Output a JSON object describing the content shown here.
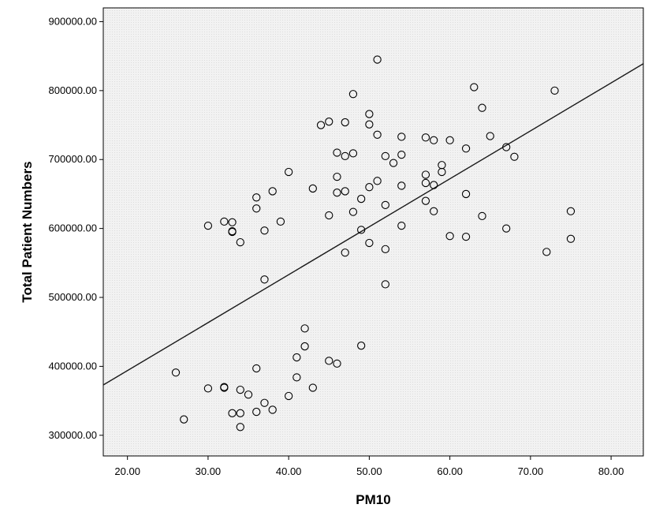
{
  "chart_data": {
    "type": "scatter",
    "xlabel": "PM10",
    "ylabel": "Total Patient Numbers",
    "xlim": [
      17,
      84
    ],
    "ylim": [
      270000,
      920000
    ],
    "x_ticks": [
      "20.00",
      "30.00",
      "40.00",
      "50.00",
      "60.00",
      "70.00",
      "80.00"
    ],
    "x_tick_values": [
      20,
      30,
      40,
      50,
      60,
      70,
      80
    ],
    "y_ticks": [
      "300000.00",
      "400000.00",
      "500000.00",
      "600000.00",
      "700000.00",
      "800000.00",
      "900000.00"
    ],
    "y_tick_values": [
      300000,
      400000,
      500000,
      600000,
      700000,
      800000,
      900000
    ],
    "grid": false,
    "legend": "none",
    "fit_line": {
      "x": [
        17,
        84
      ],
      "y": [
        373000,
        839000
      ]
    },
    "points": [
      {
        "x": 26,
        "y": 391000
      },
      {
        "x": 27,
        "y": 323000
      },
      {
        "x": 30,
        "y": 368000
      },
      {
        "x": 30,
        "y": 604000
      },
      {
        "x": 32,
        "y": 370000
      },
      {
        "x": 32,
        "y": 369000
      },
      {
        "x": 32,
        "y": 610000
      },
      {
        "x": 33,
        "y": 609000
      },
      {
        "x": 33,
        "y": 596000
      },
      {
        "x": 33,
        "y": 595000
      },
      {
        "x": 33,
        "y": 332000
      },
      {
        "x": 34,
        "y": 580000
      },
      {
        "x": 34,
        "y": 366000
      },
      {
        "x": 34,
        "y": 332000
      },
      {
        "x": 34,
        "y": 312000
      },
      {
        "x": 35,
        "y": 359000
      },
      {
        "x": 36,
        "y": 397000
      },
      {
        "x": 36,
        "y": 334000
      },
      {
        "x": 36,
        "y": 645000
      },
      {
        "x": 36,
        "y": 629000
      },
      {
        "x": 37,
        "y": 597000
      },
      {
        "x": 37,
        "y": 526000
      },
      {
        "x": 37,
        "y": 347000
      },
      {
        "x": 38,
        "y": 654000
      },
      {
        "x": 38,
        "y": 337000
      },
      {
        "x": 39,
        "y": 610000
      },
      {
        "x": 40,
        "y": 682000
      },
      {
        "x": 40,
        "y": 357000
      },
      {
        "x": 41,
        "y": 413000
      },
      {
        "x": 41,
        "y": 384000
      },
      {
        "x": 42,
        "y": 455000
      },
      {
        "x": 42,
        "y": 429000
      },
      {
        "x": 43,
        "y": 369000
      },
      {
        "x": 43,
        "y": 658000
      },
      {
        "x": 44,
        "y": 750000
      },
      {
        "x": 45,
        "y": 755000
      },
      {
        "x": 45,
        "y": 619000
      },
      {
        "x": 45,
        "y": 408000
      },
      {
        "x": 46,
        "y": 404000
      },
      {
        "x": 46,
        "y": 710000
      },
      {
        "x": 46,
        "y": 675000
      },
      {
        "x": 46,
        "y": 652000
      },
      {
        "x": 47,
        "y": 754000
      },
      {
        "x": 47,
        "y": 705000
      },
      {
        "x": 47,
        "y": 654000
      },
      {
        "x": 47,
        "y": 565000
      },
      {
        "x": 48,
        "y": 795000
      },
      {
        "x": 48,
        "y": 709000
      },
      {
        "x": 48,
        "y": 624000
      },
      {
        "x": 49,
        "y": 643000
      },
      {
        "x": 49,
        "y": 598000
      },
      {
        "x": 49,
        "y": 430000
      },
      {
        "x": 50,
        "y": 766000
      },
      {
        "x": 50,
        "y": 751000
      },
      {
        "x": 50,
        "y": 660000
      },
      {
        "x": 50,
        "y": 579000
      },
      {
        "x": 51,
        "y": 845000
      },
      {
        "x": 51,
        "y": 736000
      },
      {
        "x": 51,
        "y": 669000
      },
      {
        "x": 52,
        "y": 705000
      },
      {
        "x": 52,
        "y": 634000
      },
      {
        "x": 52,
        "y": 570000
      },
      {
        "x": 52,
        "y": 519000
      },
      {
        "x": 53,
        "y": 695000
      },
      {
        "x": 54,
        "y": 733000
      },
      {
        "x": 54,
        "y": 707000
      },
      {
        "x": 54,
        "y": 662000
      },
      {
        "x": 54,
        "y": 604000
      },
      {
        "x": 57,
        "y": 732000
      },
      {
        "x": 57,
        "y": 678000
      },
      {
        "x": 57,
        "y": 666000
      },
      {
        "x": 57,
        "y": 640000
      },
      {
        "x": 58,
        "y": 728000
      },
      {
        "x": 58,
        "y": 663000
      },
      {
        "x": 58,
        "y": 625000
      },
      {
        "x": 59,
        "y": 692000
      },
      {
        "x": 59,
        "y": 682000
      },
      {
        "x": 60,
        "y": 728000
      },
      {
        "x": 60,
        "y": 589000
      },
      {
        "x": 62,
        "y": 716000
      },
      {
        "x": 62,
        "y": 650000
      },
      {
        "x": 62,
        "y": 588000
      },
      {
        "x": 63,
        "y": 805000
      },
      {
        "x": 64,
        "y": 775000
      },
      {
        "x": 64,
        "y": 618000
      },
      {
        "x": 65,
        "y": 734000
      },
      {
        "x": 67,
        "y": 718000
      },
      {
        "x": 67,
        "y": 600000
      },
      {
        "x": 68,
        "y": 704000
      },
      {
        "x": 72,
        "y": 566000
      },
      {
        "x": 73,
        "y": 800000
      },
      {
        "x": 75,
        "y": 625000
      },
      {
        "x": 75,
        "y": 585000
      }
    ]
  }
}
